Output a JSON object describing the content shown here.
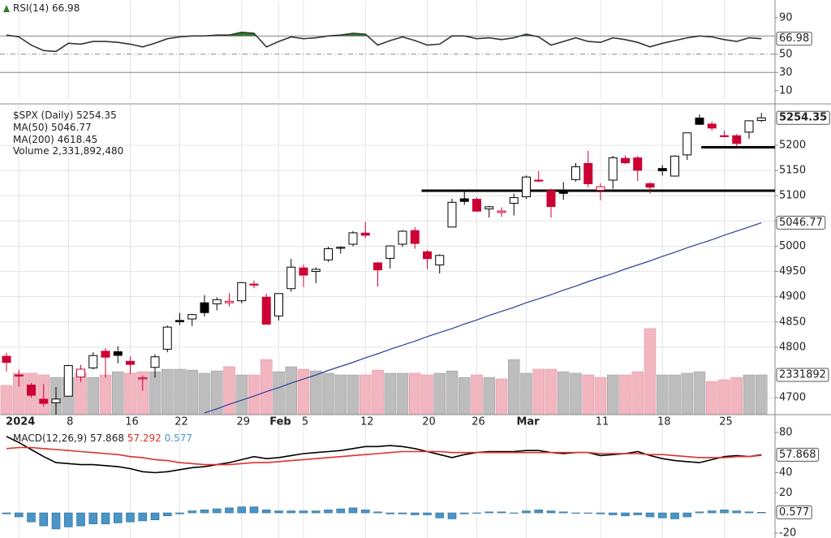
{
  "chart_data": [
    {
      "type": "line",
      "ylim": [
        0,
        105
      ],
      "yticks": [
        10,
        30,
        50,
        90
      ],
      "levels": [
        {
          "value": 70,
          "style": "solid"
        },
        {
          "value": 50,
          "style": "dashdot"
        },
        {
          "value": 30,
          "style": "solid"
        }
      ],
      "overbought": 70,
      "overbought_color": "#2e7d32",
      "series": [
        {
          "name": "RSI(14)",
          "color": "#333333",
          "values": [
            71,
            69,
            60,
            54,
            53,
            62,
            61,
            64,
            64,
            63,
            61,
            58,
            62,
            67,
            69,
            70,
            70,
            71,
            71,
            74,
            73,
            58,
            64,
            69,
            67,
            68,
            70,
            71,
            73,
            72,
            60,
            65,
            69,
            65,
            60,
            61,
            70,
            70,
            67,
            68,
            66,
            68,
            72,
            69,
            60,
            64,
            68,
            64,
            63,
            68,
            66,
            63,
            58,
            62,
            65,
            68,
            70,
            69,
            66,
            64,
            68,
            66.98
          ]
        }
      ]
    },
    {
      "type": "candlestick",
      "title": "$SPX (Daily)",
      "grid": true,
      "up_color": "#000000",
      "down_color": "#cc0033",
      "volume_up_color": "#bdbdbd",
      "volume_down_color": "#f2b6c0",
      "categories": [
        null,
        "2024",
        null,
        null,
        null,
        "8",
        null,
        null,
        null,
        null,
        "16",
        null,
        null,
        null,
        "22",
        null,
        null,
        null,
        null,
        "29",
        null,
        null,
        "Feb",
        null,
        "5",
        null,
        null,
        null,
        null,
        "12",
        null,
        null,
        null,
        null,
        "20",
        null,
        null,
        null,
        "26",
        null,
        null,
        null,
        "Mar",
        null,
        null,
        null,
        null,
        null,
        "11",
        null,
        null,
        null,
        null,
        "18",
        null,
        null,
        null,
        null,
        "25",
        null,
        null,
        null
      ],
      "open": [
        4782,
        4745,
        4725,
        4697,
        4690,
        4703,
        4741,
        4759,
        4792,
        4791,
        4772,
        4739,
        4760,
        4796,
        4853,
        4856,
        4888,
        4886,
        4888,
        4892,
        4925,
        4899,
        4862,
        4916,
        4957,
        4950,
        4973,
        4996,
        5004,
        5026,
        4967,
        4976,
        5004,
        5031,
        4989,
        4963,
        5038,
        5094,
        5093,
        5074,
        5067,
        5085,
        5098,
        5131,
        5110,
        5109,
        5132,
        5164,
        5111,
        5131,
        5174,
        5175,
        5124,
        5154,
        5139,
        5181,
        5254,
        5242,
        5219,
        5219,
        5226,
        5249
      ],
      "high": [
        4789,
        4755,
        4729,
        4727,
        4721,
        4765,
        4765,
        4790,
        4798,
        4802,
        4782,
        4744,
        4786,
        4843,
        4868,
        4866,
        4903,
        4899,
        4907,
        4929,
        4932,
        4906,
        4906,
        4975,
        4964,
        4958,
        4999,
        5000,
        5030,
        5048,
        4969,
        5002,
        5032,
        5038,
        4993,
        4984,
        5094,
        5111,
        5097,
        5080,
        5077,
        5104,
        5140,
        5149,
        5114,
        5127,
        5165,
        5189,
        5125,
        5179,
        5180,
        5179,
        5127,
        5161,
        5180,
        5225,
        5261,
        5247,
        5229,
        5222,
        5249,
        5264
      ],
      "low": [
        4752,
        4722,
        4700,
        4682,
        4667,
        4703,
        4731,
        4756,
        4740,
        4768,
        4747,
        4714,
        4740,
        4790,
        4844,
        4842,
        4861,
        4873,
        4881,
        4887,
        4917,
        4845,
        4853,
        4910,
        4919,
        4927,
        4969,
        4985,
        5000,
        5016,
        4920,
        4956,
        4999,
        4995,
        4955,
        4946,
        5038,
        5082,
        5068,
        5057,
        5058,
        5061,
        5094,
        5127,
        5057,
        5092,
        5128,
        5117,
        5091,
        5114,
        5163,
        5129,
        5104,
        5140,
        5138,
        5171,
        5240,
        5229,
        5216,
        5198,
        5213,
        5246
      ],
      "close": [
        4769.83,
        4742.83,
        4704.81,
        4688.68,
        4697.24,
        4763.54,
        4756.5,
        4783.45,
        4780.24,
        4783.83,
        4765.98,
        4739.21,
        4780.94,
        4839.81,
        4850.43,
        4864.6,
        4868.55,
        4894.16,
        4890.97,
        4927.93,
        4924.97,
        4845.65,
        4906.19,
        4958.61,
        4942.81,
        4954.23,
        4995.06,
        4997.91,
        5026.61,
        5021.84,
        4953.17,
        5000.62,
        5029.73,
        5005.57,
        4975.51,
        4981.8,
        5087.03,
        5088.8,
        5069.53,
        5078.18,
        5069.76,
        5096.27,
        5137.08,
        5130.95,
        5078.65,
        5104.76,
        5157.36,
        5123.69,
        5117.94,
        5175.27,
        5165.31,
        5150.48,
        5117.09,
        5149.42,
        5178.51,
        5224.62,
        5241.53,
        5234.18,
        5218.19,
        5203.58,
        5248.49,
        5254.35
      ],
      "ylim": [
        4668,
        5274
      ],
      "yticks": [
        4700,
        4800,
        4850,
        4900,
        4950,
        5000,
        5050,
        5100,
        5150,
        5200
      ],
      "y2lim": [
        0,
        18300000000
      ],
      "y2ticks": [
        {
          "value": 2331892480,
          "label": "2331892"
        }
      ],
      "hlines": [
        5110,
        5196
      ],
      "series": [
        {
          "name": "MA(50)",
          "color": "#2c3e9e",
          "values": [
            null,
            null,
            null,
            null,
            null,
            null,
            null,
            null,
            null,
            null,
            null,
            null,
            null,
            null,
            null,
            null,
            4670,
            4678,
            4687,
            4695,
            4703,
            4712,
            4720,
            4729,
            4737,
            4745,
            4754,
            4762,
            4770,
            4779,
            4787,
            4796,
            4804,
            4812,
            4821,
            4829,
            4837,
            4846,
            4854,
            4863,
            4871,
            4879,
            4888,
            4896,
            4904,
            4913,
            4921,
            4930,
            4938,
            4946,
            4955,
            4963,
            4971,
            4980,
            4988,
            4997,
            5005,
            5013,
            5022,
            5030,
            5038,
            5046.77
          ]
        },
        {
          "name": "MA(200)",
          "color": "#cc0033",
          "values": [
            null,
            null,
            null,
            null,
            null,
            null,
            null,
            null,
            null,
            null,
            null,
            null,
            null,
            null,
            null,
            null,
            null,
            null,
            null,
            null,
            null,
            null,
            null,
            null,
            null,
            null,
            null,
            null,
            null,
            null,
            null,
            null,
            null,
            null,
            null,
            null,
            null,
            null,
            null,
            null,
            null,
            null,
            null,
            null,
            null,
            null,
            null,
            null,
            null,
            null,
            null,
            null,
            null,
            null,
            null,
            null,
            null,
            null,
            null,
            null,
            null,
            4618.45
          ]
        },
        {
          "name": "Volume",
          "type": "bar",
          "axis": "y2",
          "color": "#777777",
          "values": [
            1700000000,
            2430000000,
            2430000000,
            2330000000,
            2180000000,
            2180000000,
            2430000000,
            2180000000,
            2330000000,
            2520000000,
            2430000000,
            2520000000,
            2520000000,
            2670000000,
            2670000000,
            2620000000,
            2430000000,
            2570000000,
            2820000000,
            2330000000,
            2330000000,
            3250000000,
            2520000000,
            2820000000,
            2670000000,
            2570000000,
            2430000000,
            2330000000,
            2330000000,
            2330000000,
            2620000000,
            2430000000,
            2430000000,
            2430000000,
            2330000000,
            2430000000,
            2570000000,
            2180000000,
            2330000000,
            2180000000,
            2090000000,
            3250000000,
            2430000000,
            2670000000,
            2670000000,
            2520000000,
            2430000000,
            2330000000,
            2180000000,
            2330000000,
            2330000000,
            2520000000,
            5100000000,
            2330000000,
            2330000000,
            2430000000,
            2520000000,
            1940000000,
            2040000000,
            2180000000,
            2330000000,
            2331892480
          ],
          "value_labels": [
            null,
            null,
            null,
            null,
            null,
            null,
            null,
            null,
            null,
            null,
            null,
            null,
            null,
            null,
            null,
            null,
            null,
            null,
            null,
            null,
            null,
            null,
            null,
            null,
            null,
            null,
            null,
            null,
            null,
            null,
            null,
            null,
            null,
            null,
            null,
            null,
            null,
            null,
            null,
            null,
            null,
            null,
            null,
            null,
            null,
            null,
            null,
            null,
            null,
            null,
            null,
            null,
            null,
            null,
            null,
            null,
            null,
            null,
            null,
            null,
            null,
            "2,331,892,480"
          ]
        }
      ]
    },
    {
      "type": "line",
      "ylim": [
        -25,
        84
      ],
      "yticks": [
        -20,
        20,
        40,
        80
      ],
      "series": [
        {
          "name": "MACD(12,26,9)",
          "color": "#000000",
          "values": [
            76,
            70,
            63,
            56,
            50,
            49,
            48,
            48,
            47,
            46,
            44,
            41,
            40,
            41,
            43,
            45,
            46,
            48,
            50,
            53,
            56,
            54,
            55,
            57,
            59,
            60,
            61,
            62,
            64,
            66,
            66,
            67,
            66,
            64,
            61,
            58,
            55,
            58,
            60,
            61,
            61,
            61,
            62,
            62,
            60,
            59,
            60,
            60,
            57,
            58,
            59,
            61,
            57,
            54,
            52,
            51,
            50,
            53,
            56,
            57,
            56,
            57.868
          ]
        },
        {
          "color": "#e0302a",
          "values": [
            64,
            65,
            65,
            64,
            63,
            62,
            61,
            60,
            59,
            58,
            56,
            55,
            53,
            52,
            50,
            49,
            48,
            48,
            48,
            49,
            50,
            50,
            51,
            52,
            53,
            54,
            55,
            56,
            57,
            58,
            59,
            60,
            61,
            61,
            61,
            61,
            60,
            60,
            60,
            60,
            60,
            60,
            60,
            60,
            60,
            60,
            60,
            60,
            59,
            59,
            59,
            59,
            58,
            58,
            57,
            56,
            55,
            55,
            55,
            56,
            56,
            57.292
          ]
        },
        {
          "type": "bar",
          "color": "#4a94c6",
          "values": [
            -1,
            -4,
            -9,
            -13,
            -16,
            -14,
            -13,
            -11,
            -11,
            -10,
            -9,
            -8,
            -7,
            -3,
            -1,
            2,
            3,
            4,
            5,
            6,
            6,
            3,
            2,
            2,
            2,
            2,
            3,
            4,
            5,
            3,
            1,
            -1,
            -1,
            -2,
            -2,
            -5,
            -6,
            -1,
            0,
            1,
            1,
            0,
            2,
            3,
            2,
            1,
            0,
            0,
            -1,
            -2,
            -3,
            -2,
            -4,
            -5,
            -6,
            -4,
            1,
            2,
            3,
            2,
            1,
            0.577
          ]
        }
      ]
    }
  ]
}
